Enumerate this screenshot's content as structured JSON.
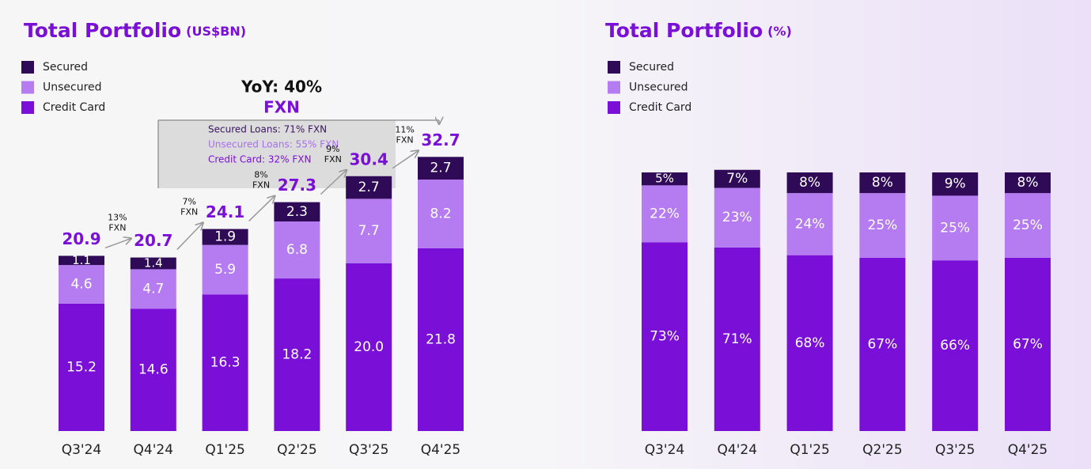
{
  "chart_data": [
    {
      "type": "stacked_bar",
      "title": "Total Portfolio",
      "title_unit": "(US$BN)",
      "categories": [
        "Q3'24",
        "Q4'24",
        "Q1'25",
        "Q2'25",
        "Q3'25",
        "Q4'25"
      ],
      "series": [
        {
          "name": "Secured",
          "color": "#2e0a57",
          "values": [
            1.1,
            1.4,
            1.9,
            2.3,
            2.7,
            2.7
          ]
        },
        {
          "name": "Unsecured",
          "color": "#b57cf2",
          "values": [
            4.6,
            4.7,
            5.9,
            6.8,
            7.7,
            8.2
          ]
        },
        {
          "name": "Credit Card",
          "color": "#7a10d8",
          "values": [
            15.2,
            14.6,
            16.3,
            18.2,
            20.0,
            21.8
          ],
          "value_labels": [
            "15.2",
            "14.6",
            "16.3",
            "18.2",
            "20.0",
            "21.8"
          ]
        }
      ],
      "totals": [
        20.9,
        20.7,
        24.1,
        27.3,
        30.4,
        32.7
      ],
      "growth": {
        "values": [
          13,
          7,
          8,
          9,
          11
        ],
        "value_labels": [
          "13%",
          "7%",
          "8%",
          "9%",
          "11%"
        ],
        "unit": "FXN"
      },
      "annotation": {
        "headline": "YoY: 40%",
        "subhead": "FXN",
        "lines": [
          "Secured Loans: 71% FXN",
          "Unsecured Loans: 55% FXN",
          "Credit Card: 32% FXN"
        ]
      }
    },
    {
      "type": "stacked_bar",
      "title": "Total Portfolio",
      "title_unit": "(%)",
      "categories": [
        "Q3'24",
        "Q4'24",
        "Q1'25",
        "Q2'25",
        "Q3'25",
        "Q4'25"
      ],
      "series": [
        {
          "name": "Secured",
          "color": "#2e0a57",
          "values": [
            5,
            7,
            8,
            8,
            9,
            8
          ],
          "value_labels": [
            "5%",
            "7%",
            "8%",
            "8%",
            "9%",
            "8%"
          ]
        },
        {
          "name": "Unsecured",
          "color": "#b57cf2",
          "values": [
            22,
            23,
            24,
            25,
            25,
            25
          ],
          "value_labels": [
            "22%",
            "23%",
            "24%",
            "25%",
            "25%",
            "25%"
          ]
        },
        {
          "name": "Credit Card",
          "color": "#7a10d8",
          "values": [
            73,
            71,
            68,
            67,
            66,
            67
          ],
          "value_labels": [
            "73%",
            "71%",
            "68%",
            "67%",
            "66%",
            "67%"
          ]
        }
      ]
    }
  ]
}
